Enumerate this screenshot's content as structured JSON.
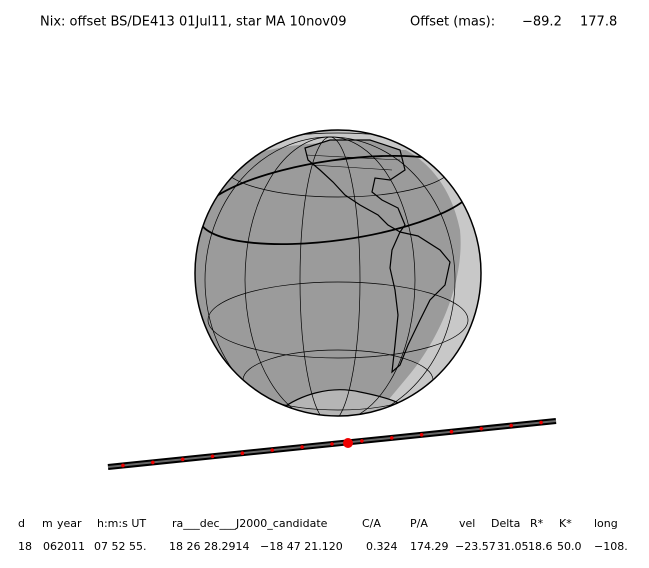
{
  "header": {
    "title": "Nix: offset BS/DE413 01Jul11, star MA 10nov09",
    "offset_label": "Offset (mas):",
    "offset_values": [
      "−89.2",
      "177.8"
    ]
  },
  "table": {
    "columns": [
      "d",
      "m",
      "year",
      "h:m:s UT",
      "ra___dec___J2000_candidate",
      "C/A",
      "P/A",
      "vel",
      "Delta",
      "R*",
      "K*",
      "long"
    ],
    "values": [
      "18",
      "06",
      "2011",
      "07 52 55.",
      "18 26 28.2914",
      "−18 47 21.120",
      "0.324",
      "174.29",
      "−23.57",
      "31.05",
      "18.6",
      "50.0",
      "−108."
    ]
  }
}
